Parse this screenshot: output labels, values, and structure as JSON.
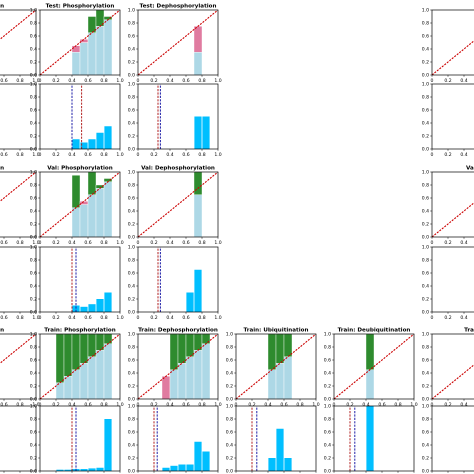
{
  "colors": {
    "above": "#2e8b2e",
    "calibrated": "#add8e6",
    "below": "#e07ba0",
    "hist": "#00bfff",
    "diagonal": "#cc0000",
    "vline_red": "#b22222",
    "vline_blue": "#1f1fa8"
  },
  "ticks": {
    "x": [
      "0",
      "0.2",
      "0.4",
      "0.6",
      "0.8",
      "1.0"
    ],
    "y": [
      "0.0",
      "0.2",
      "0.4",
      "0.6",
      "0.8",
      "1.0"
    ]
  },
  "chart_data": [
    {
      "id": "test-left-cal",
      "type": "bar",
      "title": "ation",
      "ylim": [
        0,
        1
      ],
      "bins": [
        {
          "x": 0.1,
          "acc": 1.0,
          "conf": 0.55
        }
      ]
    },
    {
      "id": "test-left-hist",
      "type": "bar",
      "bins": [
        {
          "x": 0.1,
          "value": 0.25
        }
      ]
    },
    {
      "id": "test-phos-cal",
      "type": "bar",
      "title": "Test: Phosphorylation",
      "ylim": [
        0,
        1
      ],
      "bins": [
        {
          "x": 0.45,
          "acc": 0.35,
          "conf": 0.45
        },
        {
          "x": 0.55,
          "acc": 0.5,
          "conf": 0.55
        },
        {
          "x": 0.65,
          "acc": 0.9,
          "conf": 0.65
        },
        {
          "x": 0.75,
          "acc": 1.0,
          "conf": 0.75
        },
        {
          "x": 0.85,
          "acc": 0.9,
          "conf": 0.85
        }
      ]
    },
    {
      "id": "test-phos-hist",
      "type": "bar",
      "bins": [
        {
          "x": 0.45,
          "value": 0.15
        },
        {
          "x": 0.55,
          "value": 0.1
        },
        {
          "x": 0.65,
          "value": 0.15
        },
        {
          "x": 0.75,
          "value": 0.25
        },
        {
          "x": 0.85,
          "value": 0.35
        }
      ],
      "vlines": [
        {
          "x": 0.4,
          "style": "blue-dash"
        },
        {
          "x": 0.52,
          "style": "red-dash"
        }
      ]
    },
    {
      "id": "test-dephos-cal",
      "type": "bar",
      "title": "Test: Dephosphorylation",
      "ylim": [
        0,
        1
      ],
      "bins": [
        {
          "x": 0.75,
          "acc": 0.35,
          "conf": 0.75
        }
      ]
    },
    {
      "id": "test-dephos-hist",
      "type": "bar",
      "bins": [
        {
          "x": 0.75,
          "value": 0.5
        },
        {
          "x": 0.85,
          "value": 0.5
        }
      ],
      "vlines": [
        {
          "x": 0.25,
          "style": "red-dash"
        },
        {
          "x": 0.28,
          "style": "blue-dash"
        }
      ]
    },
    {
      "id": "test-right-cal",
      "type": "bar",
      "title": "",
      "ylim": [
        0,
        1
      ],
      "bins": []
    },
    {
      "id": "test-right-hist",
      "type": "bar",
      "bins": []
    },
    {
      "id": "val-left-cal",
      "type": "bar",
      "title": "ation",
      "ylim": [
        0,
        1
      ],
      "bins": [
        {
          "x": 0.1,
          "acc": 0.0,
          "conf": 0.45
        }
      ]
    },
    {
      "id": "val-left-hist",
      "type": "bar",
      "bins": [
        {
          "x": 0.1,
          "value": 0.3
        }
      ]
    },
    {
      "id": "val-phos-cal",
      "type": "bar",
      "title": "Val: Phosphorylation",
      "ylim": [
        0,
        1
      ],
      "bins": [
        {
          "x": 0.45,
          "acc": 0.95,
          "conf": 0.45
        },
        {
          "x": 0.55,
          "acc": 0.5,
          "conf": 0.55
        },
        {
          "x": 0.65,
          "acc": 1.0,
          "conf": 0.65
        },
        {
          "x": 0.75,
          "acc": 0.8,
          "conf": 0.75
        },
        {
          "x": 0.85,
          "acc": 0.9,
          "conf": 0.85
        }
      ]
    },
    {
      "id": "val-phos-hist",
      "type": "bar",
      "bins": [
        {
          "x": 0.45,
          "value": 0.1
        },
        {
          "x": 0.55,
          "value": 0.08
        },
        {
          "x": 0.65,
          "value": 0.12
        },
        {
          "x": 0.75,
          "value": 0.2
        },
        {
          "x": 0.85,
          "value": 0.3
        }
      ],
      "vlines": [
        {
          "x": 0.4,
          "style": "red-dash"
        },
        {
          "x": 0.45,
          "style": "blue-dash"
        }
      ]
    },
    {
      "id": "val-dephos-cal",
      "type": "bar",
      "title": "Val: Dephosphorylation",
      "ylim": [
        0,
        1
      ],
      "bins": [
        {
          "x": 0.75,
          "acc": 1.0,
          "conf": 0.65
        }
      ]
    },
    {
      "id": "val-dephos-hist",
      "type": "bar",
      "bins": [
        {
          "x": 0.65,
          "value": 0.3
        },
        {
          "x": 0.75,
          "value": 0.65
        }
      ],
      "vlines": [
        {
          "x": 0.25,
          "style": "red-dash"
        },
        {
          "x": 0.28,
          "style": "blue-dash"
        }
      ]
    },
    {
      "id": "val-right-cal",
      "type": "bar",
      "title": "Val:",
      "ylim": [
        0,
        1
      ],
      "bins": []
    },
    {
      "id": "val-right-hist",
      "type": "bar",
      "bins": []
    },
    {
      "id": "train-left-cal",
      "type": "bar",
      "title": "ation",
      "ylim": [
        0,
        1
      ],
      "bins": [
        {
          "x": 0.1,
          "acc": 1.0,
          "conf": 0.55
        }
      ]
    },
    {
      "id": "train-left-hist",
      "type": "bar",
      "bins": [
        {
          "x": 0.05,
          "value": 0.55
        },
        {
          "x": 0.15,
          "value": 0.5
        }
      ]
    },
    {
      "id": "train-phos-cal",
      "type": "bar",
      "title": "Train: Phosphorylation",
      "ylim": [
        0,
        1
      ],
      "bins": [
        {
          "x": 0.25,
          "acc": 1.0,
          "conf": 0.25
        },
        {
          "x": 0.35,
          "acc": 1.0,
          "conf": 0.35
        },
        {
          "x": 0.45,
          "acc": 1.0,
          "conf": 0.45
        },
        {
          "x": 0.55,
          "acc": 1.0,
          "conf": 0.55
        },
        {
          "x": 0.65,
          "acc": 1.0,
          "conf": 0.65
        },
        {
          "x": 0.75,
          "acc": 1.0,
          "conf": 0.75
        },
        {
          "x": 0.85,
          "acc": 1.0,
          "conf": 0.85
        }
      ]
    },
    {
      "id": "train-phos-hist",
      "type": "bar",
      "bins": [
        {
          "x": 0.25,
          "value": 0.02
        },
        {
          "x": 0.35,
          "value": 0.02
        },
        {
          "x": 0.45,
          "value": 0.03
        },
        {
          "x": 0.55,
          "value": 0.03
        },
        {
          "x": 0.65,
          "value": 0.04
        },
        {
          "x": 0.75,
          "value": 0.05
        },
        {
          "x": 0.85,
          "value": 0.8
        }
      ],
      "vlines": [
        {
          "x": 0.4,
          "style": "red-dash"
        },
        {
          "x": 0.45,
          "style": "blue-dash"
        }
      ]
    },
    {
      "id": "train-dephos-cal",
      "type": "bar",
      "title": "Train: Dephosphorylation",
      "ylim": [
        0,
        1
      ],
      "bins": [
        {
          "x": 0.35,
          "acc": 0.0,
          "conf": 0.35
        },
        {
          "x": 0.45,
          "acc": 1.0,
          "conf": 0.45
        },
        {
          "x": 0.55,
          "acc": 1.0,
          "conf": 0.55
        },
        {
          "x": 0.65,
          "acc": 1.0,
          "conf": 0.65
        },
        {
          "x": 0.75,
          "acc": 1.0,
          "conf": 0.75
        },
        {
          "x": 0.85,
          "acc": 1.0,
          "conf": 0.85
        }
      ]
    },
    {
      "id": "train-dephos-hist",
      "type": "bar",
      "bins": [
        {
          "x": 0.35,
          "value": 0.05
        },
        {
          "x": 0.45,
          "value": 0.08
        },
        {
          "x": 0.55,
          "value": 0.1
        },
        {
          "x": 0.65,
          "value": 0.1
        },
        {
          "x": 0.75,
          "value": 0.45
        },
        {
          "x": 0.85,
          "value": 0.3
        }
      ],
      "vlines": [
        {
          "x": 0.2,
          "style": "red-dash"
        },
        {
          "x": 0.24,
          "style": "blue-dash"
        }
      ]
    },
    {
      "id": "train-ubiq-cal",
      "type": "bar",
      "title": "Train: Ubiquitination",
      "ylim": [
        0,
        1
      ],
      "bins": [
        {
          "x": 0.45,
          "acc": 1.0,
          "conf": 0.45
        },
        {
          "x": 0.55,
          "acc": 1.0,
          "conf": 0.55
        },
        {
          "x": 0.65,
          "acc": 1.0,
          "conf": 0.65
        }
      ]
    },
    {
      "id": "train-ubiq-hist",
      "type": "bar",
      "bins": [
        {
          "x": 0.45,
          "value": 0.2
        },
        {
          "x": 0.55,
          "value": 0.65
        },
        {
          "x": 0.65,
          "value": 0.2
        }
      ],
      "vlines": [
        {
          "x": 0.2,
          "style": "red-dash"
        },
        {
          "x": 0.26,
          "style": "blue-dash"
        }
      ]
    },
    {
      "id": "train-deubiq-cal",
      "type": "bar",
      "title": "Train: Deubiquitination",
      "ylim": [
        0,
        1
      ],
      "bins": [
        {
          "x": 0.45,
          "acc": 1.0,
          "conf": 0.45
        }
      ]
    },
    {
      "id": "train-deubiq-hist",
      "type": "bar",
      "bins": [
        {
          "x": 0.45,
          "value": 1.0
        }
      ],
      "vlines": [
        {
          "x": 0.2,
          "style": "red-dash"
        },
        {
          "x": 0.26,
          "style": "blue-dash"
        }
      ]
    },
    {
      "id": "train-right-cal",
      "type": "bar",
      "title": "Train",
      "ylim": [
        0,
        1
      ],
      "bins": []
    },
    {
      "id": "train-right-hist",
      "type": "bar",
      "bins": []
    }
  ]
}
